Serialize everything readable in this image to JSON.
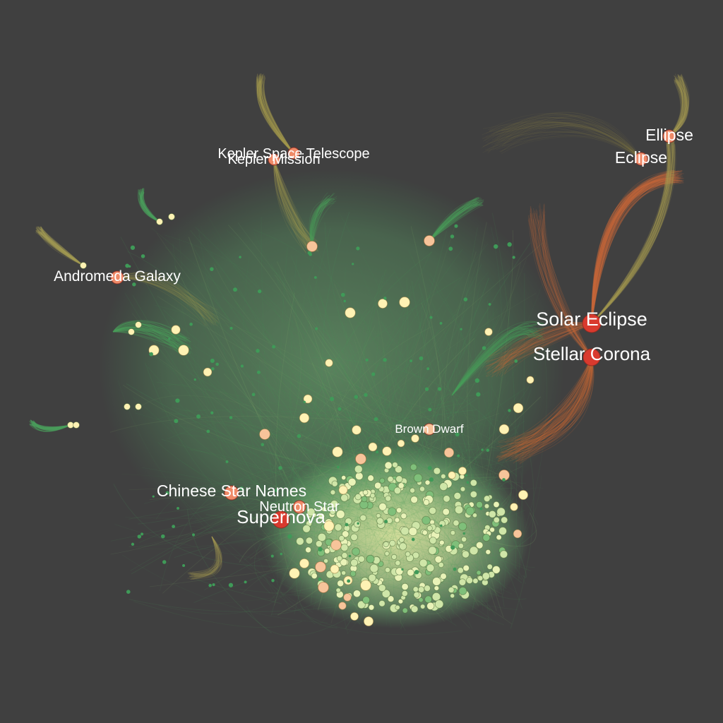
{
  "graph": {
    "background_color": "#404040",
    "colors": {
      "green_edge": "#4a9e5c",
      "olive_edge": "#a49a52",
      "red_edge": "#c76a3a",
      "hub_red": "#d93a2e",
      "hub_salmon": "#ef8a68",
      "node_peach": "#f7c49a",
      "node_cream": "#fff2b4",
      "node_pale_green": "#cfe6a8"
    },
    "labels": [
      {
        "id": "solar-eclipse",
        "text": "Solar Eclipse"
      },
      {
        "id": "stellar-corona",
        "text": "Stellar Corona"
      },
      {
        "id": "ellipse",
        "text": "Ellipse"
      },
      {
        "id": "eclipse",
        "text": "Eclipse"
      },
      {
        "id": "kepler-space-telescope",
        "text": "Kepler Space Telescope"
      },
      {
        "id": "kepler-mission",
        "text": "Kepler Mission"
      },
      {
        "id": "andromeda-galaxy",
        "text": "Andromeda Galaxy"
      },
      {
        "id": "brown-dwarf",
        "text": "Brown Dwarf"
      },
      {
        "id": "chinese-star-names",
        "text": "Chinese Star Names"
      },
      {
        "id": "neutron-star",
        "text": "Neutron Star"
      },
      {
        "id": "supernova",
        "text": "Supernova"
      }
    ]
  }
}
